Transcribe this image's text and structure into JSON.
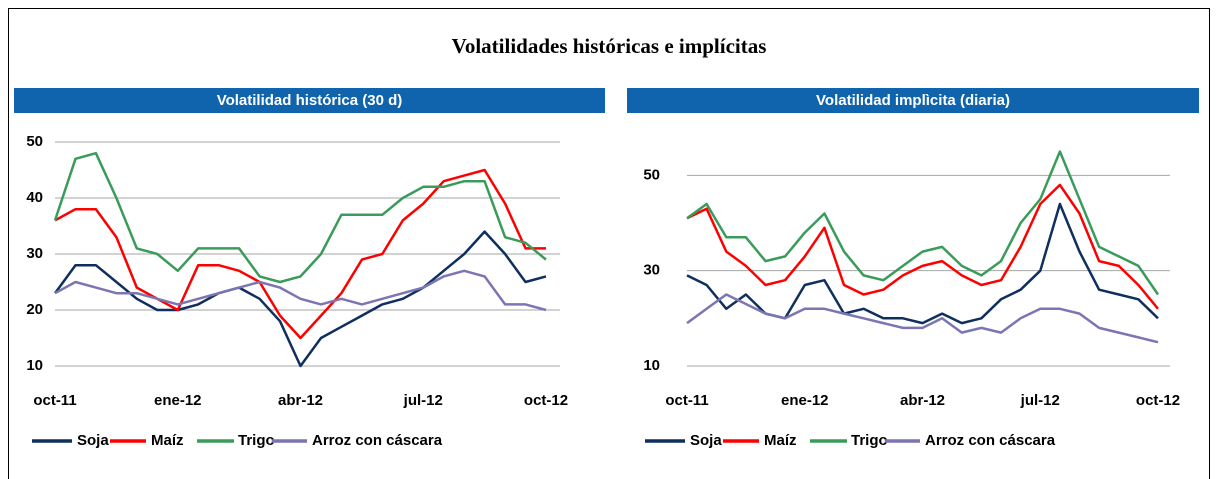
{
  "title": "Volatilidades históricas e implícitas",
  "chart_data": [
    {
      "type": "line",
      "title": "Volatilidad histórica (30 d)",
      "categories": [
        "oct-11",
        null,
        null,
        null,
        null,
        null,
        "ene-12",
        null,
        null,
        null,
        null,
        null,
        "abr-12",
        null,
        null,
        null,
        null,
        null,
        "jul-12",
        null,
        null,
        null,
        null,
        null,
        "oct-12"
      ],
      "series": [
        {
          "name": "Soja",
          "color": "#0f2f5e",
          "values": [
            23,
            28,
            28,
            25,
            22,
            20,
            20,
            21,
            23,
            24,
            22,
            18,
            10,
            15,
            17,
            19,
            21,
            22,
            24,
            27,
            30,
            34,
            30,
            25,
            26
          ]
        },
        {
          "name": "Maíz",
          "color": "#ff0000",
          "values": [
            36,
            38,
            38,
            33,
            24,
            22,
            20,
            28,
            28,
            27,
            25,
            19,
            15,
            19,
            23,
            29,
            30,
            36,
            39,
            43,
            44,
            45,
            39,
            31,
            31
          ]
        },
        {
          "name": "Trigo",
          "color": "#3a9b5a",
          "values": [
            36,
            47,
            48,
            40,
            31,
            30,
            27,
            31,
            31,
            31,
            26,
            25,
            26,
            30,
            37,
            37,
            37,
            40,
            42,
            42,
            43,
            43,
            33,
            32,
            29
          ]
        },
        {
          "name": "Arroz con cáscara",
          "color": "#7b76b3",
          "values": [
            23,
            25,
            24,
            23,
            23,
            22,
            21,
            22,
            23,
            24,
            25,
            24,
            22,
            21,
            22,
            21,
            22,
            23,
            24,
            26,
            27,
            26,
            21,
            21,
            20
          ]
        }
      ],
      "ylim": [
        10,
        50
      ],
      "yticks": [
        10,
        20,
        30,
        40,
        50
      ],
      "grid": true,
      "legend": "bottom"
    },
    {
      "type": "line",
      "title": "Volatilidad implìcita (diaria)",
      "categories": [
        "oct-11",
        null,
        null,
        null,
        null,
        null,
        "ene-12",
        null,
        null,
        null,
        null,
        null,
        "abr-12",
        null,
        null,
        null,
        null,
        null,
        "jul-12",
        null,
        null,
        null,
        null,
        null,
        "oct-12"
      ],
      "series": [
        {
          "name": "Soja",
          "color": "#0f2f5e",
          "values": [
            29,
            27,
            22,
            25,
            21,
            20,
            27,
            28,
            21,
            22,
            20,
            20,
            19,
            21,
            19,
            20,
            24,
            26,
            30,
            44,
            34,
            26,
            25,
            24,
            20
          ]
        },
        {
          "name": "Maíz",
          "color": "#ff0000",
          "values": [
            41,
            43,
            34,
            31,
            27,
            28,
            33,
            39,
            27,
            25,
            26,
            29,
            31,
            32,
            29,
            27,
            28,
            35,
            44,
            48,
            42,
            32,
            31,
            27,
            22
          ]
        },
        {
          "name": "Trigo",
          "color": "#3a9b5a",
          "values": [
            41,
            44,
            37,
            37,
            32,
            33,
            38,
            42,
            34,
            29,
            28,
            31,
            34,
            35,
            31,
            29,
            32,
            40,
            45,
            55,
            45,
            35,
            33,
            31,
            25
          ]
        },
        {
          "name": "Arroz con cáscara",
          "color": "#7b76b3",
          "values": [
            19,
            22,
            25,
            23,
            21,
            20,
            22,
            22,
            21,
            20,
            19,
            18,
            18,
            20,
            17,
            18,
            17,
            20,
            22,
            22,
            21,
            18,
            17,
            16,
            15
          ]
        }
      ],
      "ylim": [
        10,
        57
      ],
      "yticks": [
        10,
        30,
        50
      ],
      "grid": true,
      "legend": "bottom"
    }
  ]
}
